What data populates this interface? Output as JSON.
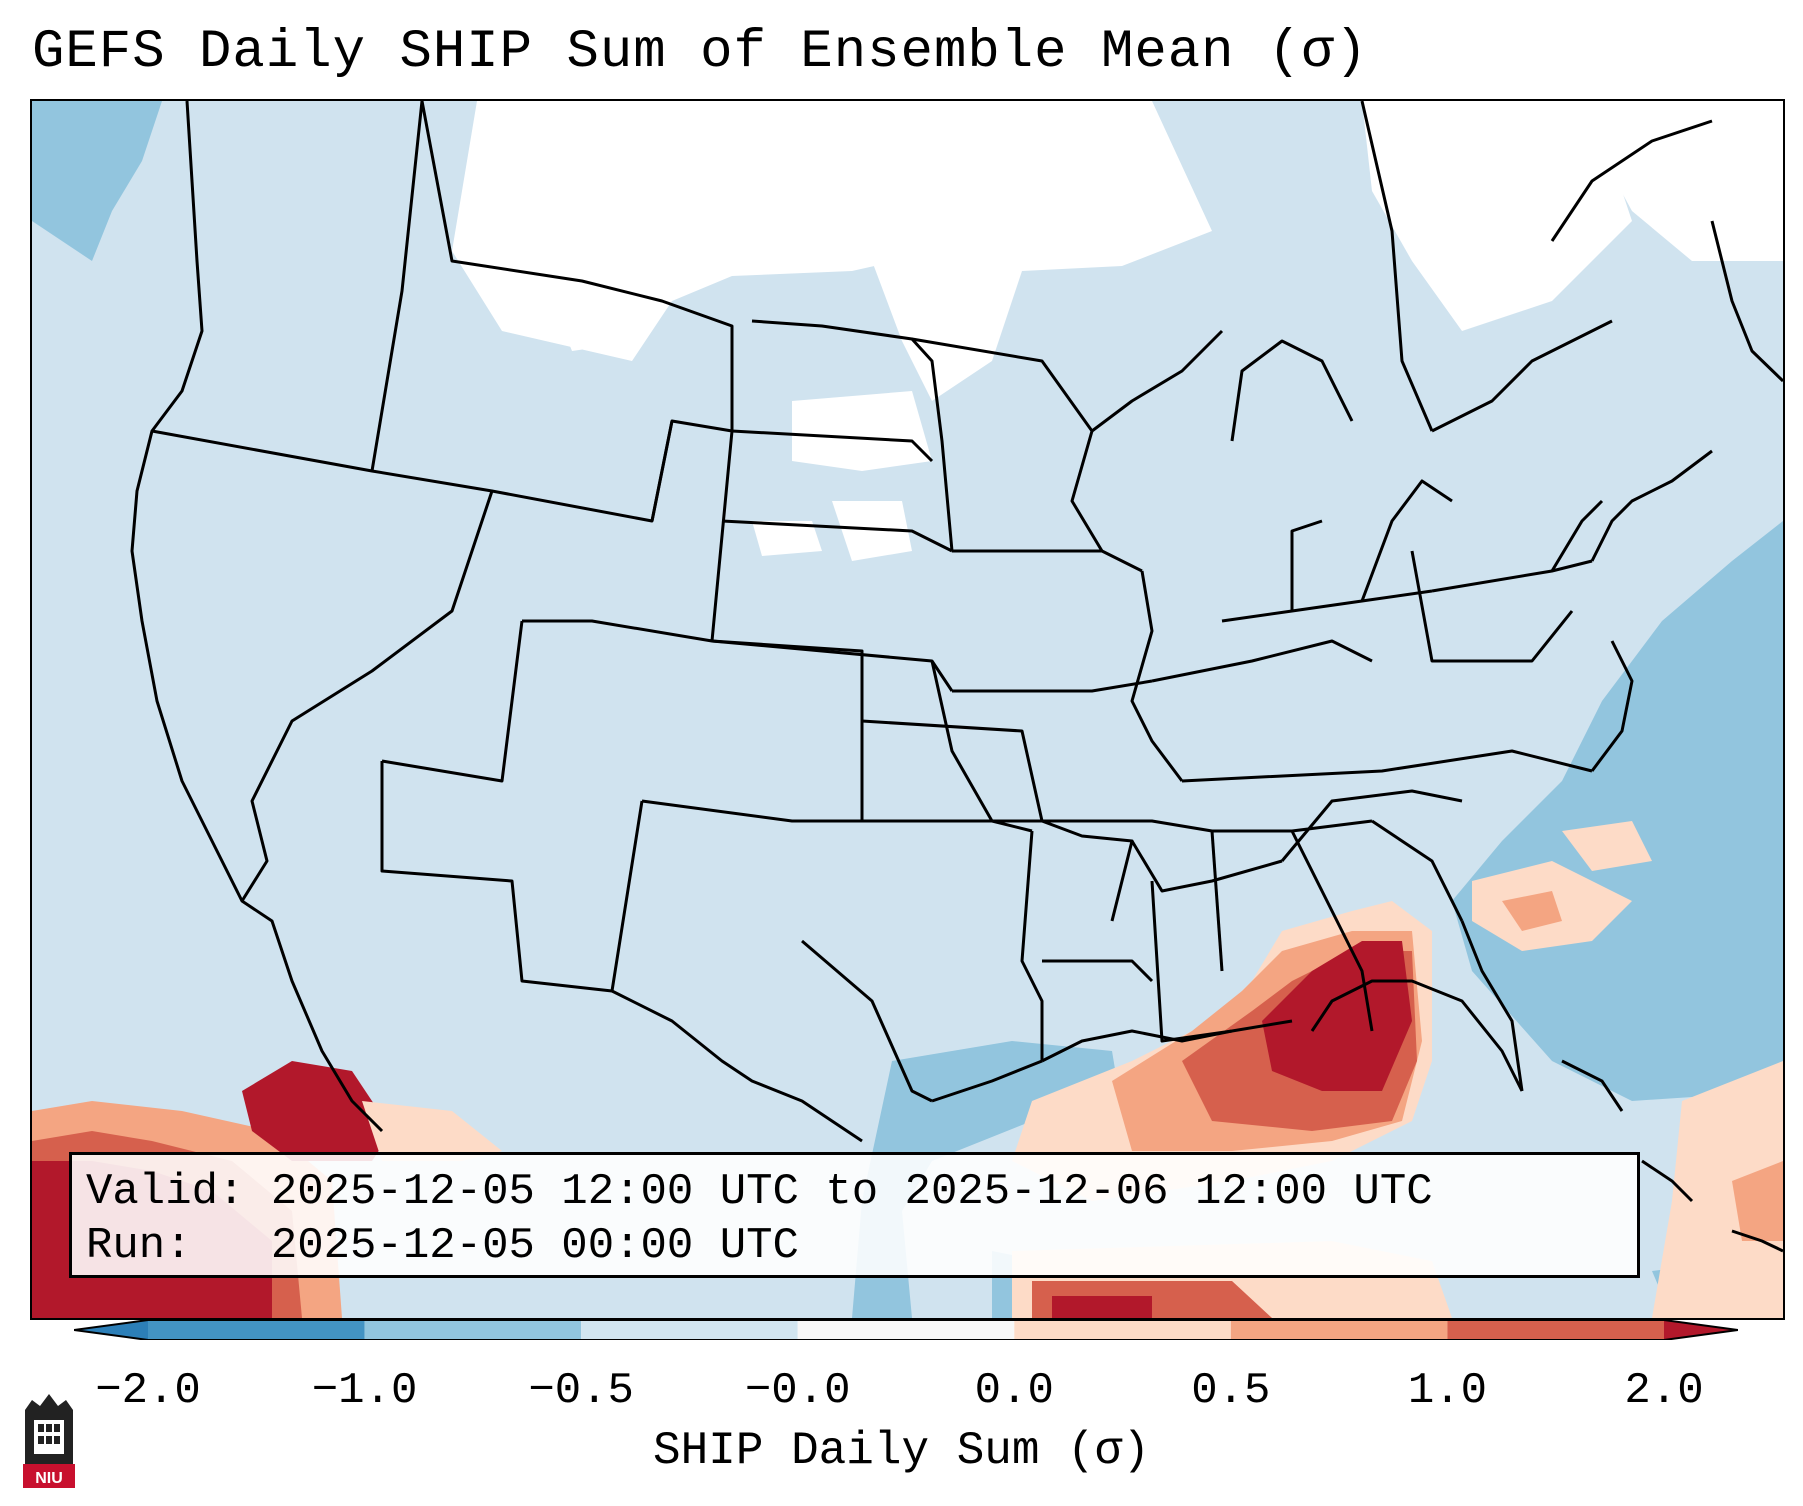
{
  "title": "GEFS Daily SHIP Sum of Ensemble Mean (σ)",
  "info_box": {
    "valid_label": "Valid:",
    "valid_value": "2025-12-05 12:00 UTC to 2025-12-06 12:00 UTC",
    "run_label": "Run:  ",
    "run_value": "2025-12-05 00:00 UTC"
  },
  "colorbar": {
    "label": "SHIP Daily Sum (σ)",
    "tick_labels": [
      "−2.0",
      "−1.0",
      "−0.5",
      "−0.0",
      "0.0",
      "0.5",
      "1.0",
      "2.0"
    ],
    "bins": [
      {
        "range": "< -2.0",
        "color": "#2c7fb8"
      },
      {
        "range": "-2.0 to -1.0",
        "color": "#4393c3"
      },
      {
        "range": "-1.0 to -0.5",
        "color": "#92c5de"
      },
      {
        "range": "-0.5 to -0.0",
        "color": "#d1e5f0"
      },
      {
        "range": "-0.0 to 0.0",
        "color": "#f7f7f7"
      },
      {
        "range": "0.0 to 0.5",
        "color": "#fddbc7"
      },
      {
        "range": "0.5 to 1.0",
        "color": "#f4a582"
      },
      {
        "range": "1.0 to 2.0",
        "color": "#d6604d"
      },
      {
        "range": "> 2.0",
        "color": "#b2182b"
      }
    ]
  },
  "map": {
    "region": "Contiguous United States",
    "colors": {
      "land_and_sea_base": "#d0e3ef",
      "neutral_bin": "#ffffff",
      "negative_bin": "#92c5de",
      "positive_bin_light": "#fddbc7",
      "positive_bin_mid": "#f4a582",
      "positive_bin_strong": "#d6604d",
      "positive_bin_max": "#b2182b",
      "borders": "#000000"
    }
  },
  "logo": {
    "name": "niu-logo",
    "text": "NIU"
  }
}
